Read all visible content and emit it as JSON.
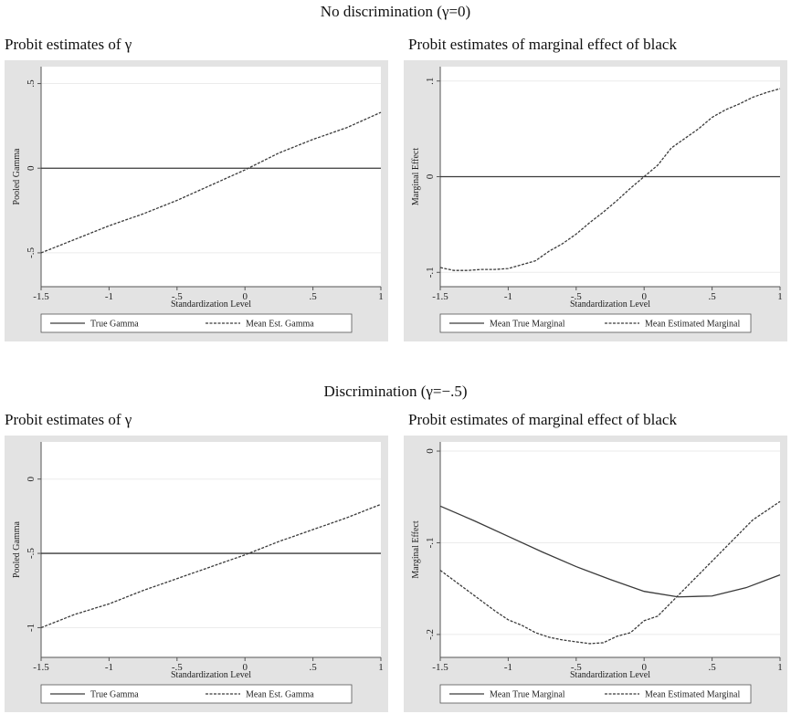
{
  "sections": [
    {
      "title": "No discrimination (γ=0)"
    },
    {
      "title": "Discrimination (γ=−.5)"
    }
  ],
  "colors": {
    "panel_bg": "#e3e3e3",
    "plot_bg": "#ffffff",
    "line": "#3a3a3a",
    "grid": "#ebebeb"
  },
  "chart_data": [
    {
      "type": "line",
      "panel_title": "Probit estimates of γ",
      "xlabel": "Standardization Level",
      "ylabel": "Pooled Gamma",
      "xlim": [
        -1.5,
        1
      ],
      "ylim": [
        -0.7,
        0.6
      ],
      "xticks": [
        -1.5,
        -1,
        -0.5,
        0,
        0.5,
        1
      ],
      "xtick_labels": [
        "-1.5",
        "-1",
        "-.5",
        "0",
        ".5",
        "1"
      ],
      "yticks": [
        -0.5,
        0,
        0.5
      ],
      "ytick_labels": [
        "-.5",
        "0",
        ".5"
      ],
      "grid": true,
      "legend_position": "bottom",
      "series": [
        {
          "name": "True Gamma",
          "style": "solid",
          "x": [
            -1.5,
            1
          ],
          "y": [
            0,
            0
          ]
        },
        {
          "name": "Mean Est. Gamma",
          "style": "dashed",
          "x": [
            -1.5,
            -1.25,
            -1,
            -0.75,
            -0.5,
            -0.25,
            0,
            0.25,
            0.5,
            0.75,
            1
          ],
          "y": [
            -0.5,
            -0.42,
            -0.34,
            -0.27,
            -0.19,
            -0.1,
            -0.01,
            0.09,
            0.17,
            0.24,
            0.33
          ]
        }
      ]
    },
    {
      "type": "line",
      "panel_title": "Probit estimates of marginal effect of black",
      "xlabel": "Standardization Level",
      "ylabel": "Marginal Effect",
      "xlim": [
        -1.5,
        1
      ],
      "ylim": [
        -0.115,
        0.115
      ],
      "xticks": [
        -1.5,
        -1,
        -0.5,
        0,
        0.5,
        1
      ],
      "xtick_labels": [
        "-1.5",
        "-1",
        "-.5",
        "0",
        ".5",
        "1"
      ],
      "yticks": [
        -0.1,
        0,
        0.1
      ],
      "ytick_labels": [
        "-.1",
        "0",
        ".1"
      ],
      "grid": true,
      "legend_position": "bottom",
      "series": [
        {
          "name": "Mean True Marginal",
          "style": "solid",
          "x": [
            -1.5,
            1
          ],
          "y": [
            0,
            0
          ]
        },
        {
          "name": "Mean Estimated Marginal",
          "style": "dashed",
          "x": [
            -1.5,
            -1.4,
            -1.3,
            -1.2,
            -1.1,
            -1.0,
            -0.9,
            -0.8,
            -0.7,
            -0.6,
            -0.5,
            -0.4,
            -0.3,
            -0.2,
            -0.1,
            0.0,
            0.1,
            0.2,
            0.3,
            0.4,
            0.5,
            0.6,
            0.7,
            0.8,
            0.9,
            1.0
          ],
          "y": [
            -0.095,
            -0.098,
            -0.098,
            -0.097,
            -0.097,
            -0.096,
            -0.092,
            -0.088,
            -0.078,
            -0.07,
            -0.06,
            -0.048,
            -0.037,
            -0.025,
            -0.012,
            0.0,
            0.012,
            0.03,
            0.04,
            0.05,
            0.062,
            0.07,
            0.076,
            0.083,
            0.088,
            0.092
          ]
        }
      ]
    },
    {
      "type": "line",
      "panel_title": "Probit estimates of γ",
      "xlabel": "Standardization Level",
      "ylabel": "Pooled Gamma",
      "xlim": [
        -1.5,
        1
      ],
      "ylim": [
        -1.2,
        0.25
      ],
      "xticks": [
        -1.5,
        -1,
        -0.5,
        0,
        0.5,
        1
      ],
      "xtick_labels": [
        "-1.5",
        "-1",
        "-.5",
        "0",
        ".5",
        "1"
      ],
      "yticks": [
        -1,
        -0.5,
        0
      ],
      "ytick_labels": [
        "-1",
        "-.5",
        "0"
      ],
      "grid": true,
      "legend_position": "bottom",
      "series": [
        {
          "name": "True Gamma",
          "style": "solid",
          "x": [
            -1.5,
            1
          ],
          "y": [
            -0.5,
            -0.5
          ]
        },
        {
          "name": "Mean Est. Gamma",
          "style": "dashed",
          "x": [
            -1.5,
            -1.25,
            -1,
            -0.75,
            -0.5,
            -0.25,
            0,
            0.25,
            0.5,
            0.75,
            1
          ],
          "y": [
            -1.0,
            -0.91,
            -0.84,
            -0.75,
            -0.67,
            -0.59,
            -0.51,
            -0.42,
            -0.34,
            -0.26,
            -0.17
          ]
        }
      ]
    },
    {
      "type": "line",
      "panel_title": "Probit estimates of marginal effect of black",
      "xlabel": "Standardization Level",
      "ylabel": "Marginal Effect",
      "xlim": [
        -1.5,
        1
      ],
      "ylim": [
        -0.225,
        0.01
      ],
      "xticks": [
        -1.5,
        -1,
        -0.5,
        0,
        0.5,
        1
      ],
      "xtick_labels": [
        "-1.5",
        "-1",
        "-.5",
        "0",
        ".5",
        "1"
      ],
      "yticks": [
        -0.2,
        -0.1,
        0
      ],
      "ytick_labels": [
        "-.2",
        "-.1",
        "0"
      ],
      "grid": true,
      "legend_position": "bottom",
      "series": [
        {
          "name": "Mean True Marginal",
          "style": "solid",
          "x": [
            -1.5,
            -1.25,
            -1.0,
            -0.75,
            -0.5,
            -0.25,
            0.0,
            0.25,
            0.5,
            0.75,
            1.0
          ],
          "y": [
            -0.06,
            -0.076,
            -0.093,
            -0.11,
            -0.126,
            -0.14,
            -0.153,
            -0.159,
            -0.158,
            -0.149,
            -0.135
          ]
        },
        {
          "name": "Mean Estimated Marginal",
          "style": "dashed",
          "x": [
            -1.5,
            -1.4,
            -1.3,
            -1.2,
            -1.1,
            -1.0,
            -0.9,
            -0.8,
            -0.7,
            -0.6,
            -0.5,
            -0.4,
            -0.3,
            -0.2,
            -0.1,
            0.0,
            0.1,
            0.2,
            0.3,
            0.4,
            0.5,
            0.6,
            0.7,
            0.8,
            0.9,
            1.0
          ],
          "y": [
            -0.13,
            -0.141,
            -0.152,
            -0.163,
            -0.174,
            -0.184,
            -0.19,
            -0.198,
            -0.203,
            -0.206,
            -0.208,
            -0.21,
            -0.209,
            -0.202,
            -0.198,
            -0.185,
            -0.18,
            -0.165,
            -0.15,
            -0.135,
            -0.12,
            -0.105,
            -0.09,
            -0.075,
            -0.065,
            -0.055
          ]
        }
      ]
    }
  ]
}
